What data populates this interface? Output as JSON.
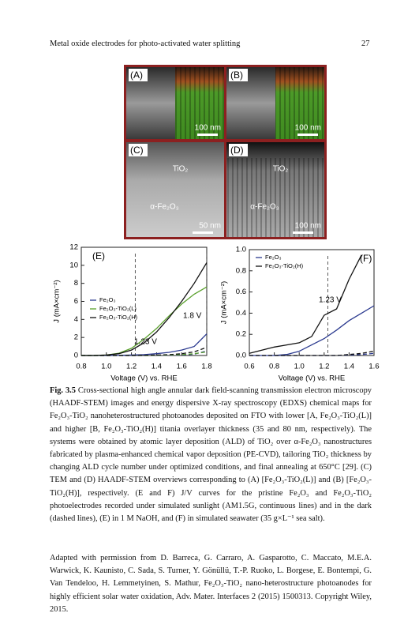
{
  "header": {
    "title": "Metal oxide electrodes for photo-activated water splitting",
    "page": "27"
  },
  "figure": {
    "panels": [
      {
        "label": "(A)",
        "scale": "100 nm"
      },
      {
        "label": "(B)",
        "scale": "100 nm"
      },
      {
        "label": "(C)",
        "scale": "50 nm",
        "layers": [
          "TiO₂",
          "α-Fe₂O₃"
        ]
      },
      {
        "label": "(D)",
        "scale": "100 nm",
        "layers": [
          "TiO₂",
          "α-Fe₂O₃"
        ]
      }
    ]
  },
  "chart_data": [
    {
      "type": "line",
      "label": "(E)",
      "x_label": "Voltage (V) vs. RHE",
      "y_label": "J (mA×cm⁻²)",
      "xlim": [
        0.8,
        1.8
      ],
      "ylim": [
        0,
        12
      ],
      "xticks": [
        0.8,
        {
          "value": 1.0,
          "label": "1.0"
        },
        1.2,
        1.4,
        1.6,
        1.8
      ],
      "yticks": [
        0,
        2,
        4,
        6,
        8,
        10,
        12
      ],
      "legend": "center left",
      "x": [
        0.8,
        0.9,
        1.0,
        1.1,
        1.2,
        1.3,
        1.4,
        1.5,
        1.6,
        1.7,
        1.8
      ],
      "series": [
        {
          "name": "Fe₂O₃",
          "color": "#2b3a8f",
          "values": [
            0,
            0,
            0,
            0.02,
            0.05,
            0.1,
            0.2,
            0.35,
            0.6,
            1.0,
            2.4
          ],
          "dark_values": [
            0,
            0,
            0,
            0,
            0,
            0,
            0,
            0.02,
            0.05,
            0.15,
            0.5
          ]
        },
        {
          "name": "Fe₂O₃-TiO₂(L)",
          "color": "#5aa02c",
          "values": [
            0,
            0,
            0.05,
            0.25,
            0.8,
            1.8,
            3.0,
            4.4,
            5.7,
            6.8,
            7.6
          ],
          "dark_values": [
            0,
            0,
            0,
            0,
            0,
            0,
            0.02,
            0.05,
            0.1,
            0.2,
            0.4
          ]
        },
        {
          "name": "Fe₂O₃-TiO₂(H)",
          "color": "#111111",
          "values": [
            0,
            0,
            0.05,
            0.2,
            0.6,
            1.4,
            2.6,
            4.2,
            6.0,
            8.0,
            10.3
          ],
          "dark_values": [
            0,
            0,
            0,
            0,
            0,
            0.02,
            0.05,
            0.1,
            0.2,
            0.4,
            0.9
          ]
        }
      ],
      "reference_lines": [
        1.23,
        1.8
      ],
      "annotations": [
        "1.23 V",
        "1.8 V"
      ]
    },
    {
      "type": "line",
      "label": "(F)",
      "x_label": "Voltage (V) vs. RHE",
      "y_label": "J (mA×cm⁻²)",
      "xlim": [
        0.6,
        1.6
      ],
      "ylim": [
        0,
        1.0
      ],
      "xticks": [
        0.6,
        0.8,
        {
          "value": 1.0,
          "label": "1.0"
        },
        1.2,
        1.4,
        1.6
      ],
      "yticks": [
        {
          "value": 0,
          "label": "0.0"
        },
        0.2,
        0.4,
        0.6,
        0.8,
        {
          "value": 1.0,
          "label": "1.0"
        }
      ],
      "legend": "upper left",
      "x": [
        0.6,
        0.7,
        0.8,
        0.9,
        1.0,
        1.1,
        1.2,
        1.3,
        1.4,
        1.5,
        1.6
      ],
      "series": [
        {
          "name": "Fe₂O₃",
          "color": "#2b3a8f",
          "values": [
            0,
            0,
            0,
            0.01,
            0.04,
            0.1,
            0.16,
            0.24,
            0.33,
            0.4,
            0.47
          ],
          "dark_values": [
            0,
            0,
            0,
            0,
            0,
            0,
            0,
            0,
            0.005,
            0.01,
            0.02
          ]
        },
        {
          "name": "Fe₂O₃-TiO₂(H)",
          "color": "#111111",
          "values": [
            0.02,
            0.05,
            0.08,
            0.1,
            0.12,
            0.18,
            0.38,
            0.44,
            0.72,
            0.95,
            null
          ],
          "dark_values": [
            0,
            0,
            0,
            0,
            0,
            0,
            0,
            0,
            0.01,
            0.02,
            0.04
          ]
        }
      ],
      "reference_lines": [
        1.23
      ],
      "annotations": [
        "1.23 V"
      ]
    }
  ],
  "caption": {
    "label": "Fig. 3.5",
    "text": "Cross-sectional high angle annular dark field-scanning transmission electron microscopy (HAADF-STEM) images and energy dispersive X-ray spectroscopy (EDXS) chemical maps for Fe₂O₃-TiO₂ nanoheterostructured photoanodes deposited on FTO with lower [A, Fe₂O₃-TiO₂(L)] and higher [B, Fe₂O₃-TiO₂(H)] titania overlayer thickness (35 and 80 nm, respectively). The systems were obtained by atomic layer deposition (ALD) of TiO₂ over α-Fe₂O₃ nanostructures fabricated by plasma-enhanced chemical vapor deposition (PE-CVD), tailoring TiO₂ thickness by changing ALD cycle number under optimized conditions, and final annealing at 650°C [29]. (C) TEM and (D) HAADF-STEM overviews corresponding to (A) [Fe₂O₃-TiO₂(L)] and (B) [Fe₂O₃-TiO₂(H)], respectively. (E and F) J/V curves for the pristine Fe₂O₃ and Fe₂O₃-TiO₂ photoelectrodes recorded under simulated sunlight (AM1.5G, continuous lines) and in the dark (dashed lines), (E) in 1 M NaOH, and (F) in simulated seawater (35 g×L⁻¹ sea salt).",
    "credit": "Adapted with permission from D. Barreca, G. Carraro, A. Gasparotto, C. Maccato, M.E.A. Warwick, K. Kaunisto, C. Sada, S. Turner, Y. Gönüllü, T.-P. Ruoko, L. Borgese, E. Bontempi, G. Van Tendeloo, H. Lemmetyinen, S. Mathur, Fe₂O₃-TiO₂ nano-heterostructure photoanodes for highly efficient solar water oxidation, Adv. Mater. Interfaces 2 (2015) 1500313. Copyright Wiley, 2015."
  }
}
